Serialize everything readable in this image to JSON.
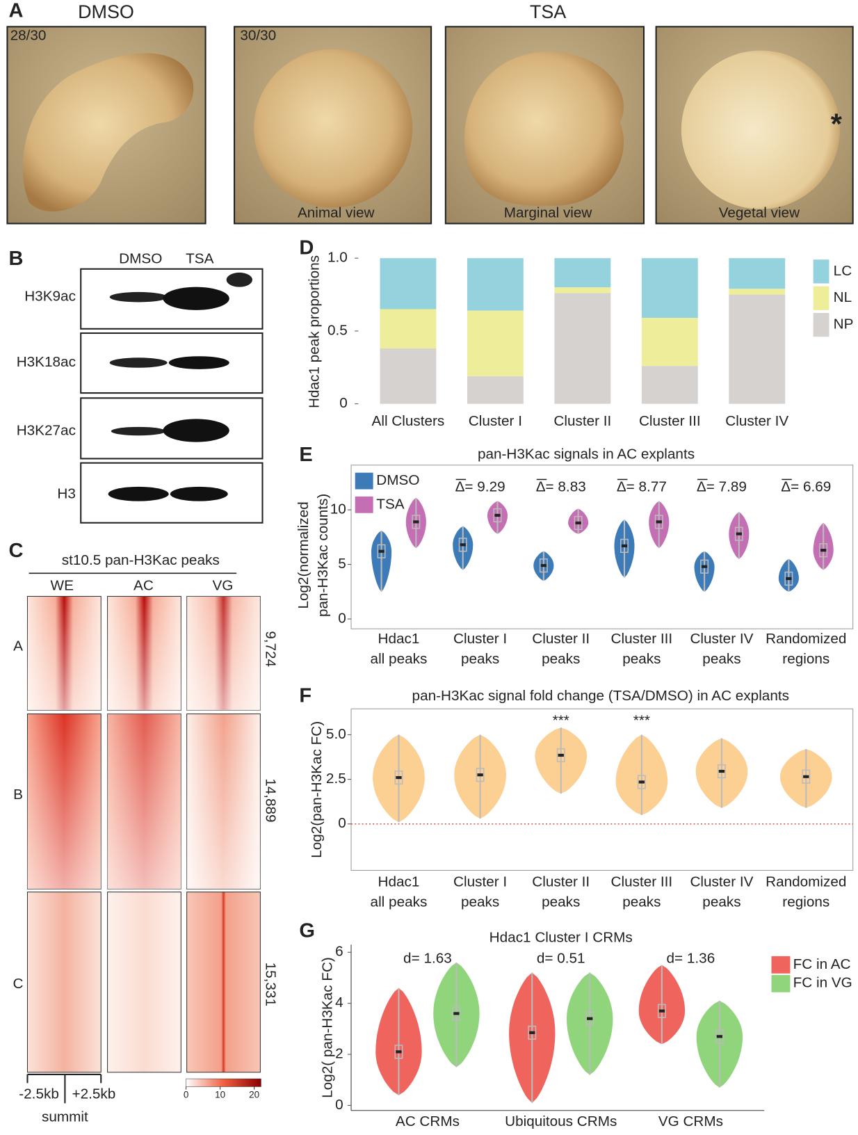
{
  "panel_a": {
    "letter": "A",
    "groups": [
      "DMSO",
      "TSA"
    ],
    "counts": [
      "28/30",
      "30/30"
    ],
    "views": [
      "Animal view",
      "Marginal view",
      "Vegetal view"
    ],
    "mark": "*"
  },
  "panel_b": {
    "letter": "B",
    "columns": [
      "DMSO",
      "TSA"
    ],
    "rows": [
      "H3K9ac",
      "H3K18ac",
      "H3K27ac",
      "H3"
    ]
  },
  "panel_c": {
    "letter": "C",
    "title": "st10.5 pan-H3Kac peaks",
    "columns": [
      "WE",
      "AC",
      "VG"
    ],
    "clusters": [
      "A",
      "B",
      "C"
    ],
    "counts": [
      "9,724",
      "14,889",
      "15,331"
    ],
    "x_labels": [
      "-2.5kb",
      "+2.5kb"
    ],
    "x_center": "summit",
    "colorbar": {
      "lim": [
        0,
        22
      ],
      "ticks": [
        0,
        10,
        20
      ]
    }
  },
  "chart_data": [
    {
      "type": "bar",
      "stacked": true,
      "panel": "D",
      "ylabel": "Hdac1 peak proportions",
      "categories": [
        "All Clusters",
        "Cluster I",
        "Cluster II",
        "Cluster III",
        "Cluster IV"
      ],
      "series": [
        {
          "name": "NP",
          "color": "#d5d2cf",
          "values": [
            0.38,
            0.19,
            0.76,
            0.26,
            0.75
          ]
        },
        {
          "name": "NL",
          "color": "#eeee9a",
          "values": [
            0.27,
            0.45,
            0.04,
            0.33,
            0.04
          ]
        },
        {
          "name": "LC",
          "color": "#94d3de",
          "values": [
            0.35,
            0.36,
            0.2,
            0.41,
            0.21
          ]
        }
      ],
      "ylim": [
        0,
        1
      ],
      "yticks": [
        0,
        0.5,
        {
          "value": 1,
          "label": "1.0"
        }
      ],
      "legend": "right"
    },
    {
      "type": "violin",
      "panel": "E",
      "title": "pan-H3Kac signals in AC explants",
      "ylabel": [
        "Log2(normalized",
        "pan-H3Kac counts)"
      ],
      "categories": [
        [
          "Hdac1",
          "all peaks"
        ],
        [
          "Cluster I",
          "peaks"
        ],
        [
          "Cluster II",
          "peaks"
        ],
        [
          "Cluster III",
          "peaks"
        ],
        [
          "Cluster IV",
          "peaks"
        ],
        [
          "Randomized",
          "regions"
        ]
      ],
      "annotations": [
        null,
        "Δ= 9.29",
        "Δ= 8.83",
        "Δ= 8.77",
        "Δ= 7.89",
        "Δ= 6.69"
      ],
      "series": [
        {
          "name": "DMSO",
          "color": "#3d7ab8",
          "values": [
            6.2,
            6.8,
            4.9,
            6.7,
            4.8,
            3.7
          ],
          "lower": [
            2.5,
            4.5,
            3.5,
            3.8,
            2.5,
            2.5
          ],
          "upper": [
            8.1,
            8.5,
            6.2,
            9.1,
            6.2,
            5.5
          ]
        },
        {
          "name": "TSA",
          "color": "#c46fb4",
          "values": [
            8.9,
            9.5,
            8.8,
            8.9,
            7.8,
            6.3
          ],
          "lower": [
            6.5,
            7.8,
            7.8,
            6.5,
            5.5,
            4.5
          ],
          "upper": [
            11.1,
            10.8,
            10.1,
            10.8,
            9.8,
            8.8
          ]
        }
      ],
      "ylim": [
        -0.9,
        14.1
      ],
      "yticks": [
        0,
        5,
        10
      ],
      "legend": "upper left"
    },
    {
      "type": "violin",
      "panel": "F",
      "title": "pan-H3Kac signal fold change (TSA/DMSO) in AC explants",
      "ylabel": "Log2(pan-H3Kac FC)",
      "categories": [
        [
          "Hdac1",
          "all peaks"
        ],
        [
          "Cluster I",
          "peaks"
        ],
        [
          "Cluster II",
          "peaks"
        ],
        [
          "Cluster III",
          "peaks"
        ],
        [
          "Cluster IV",
          "peaks"
        ],
        [
          "Randomized",
          "regions"
        ]
      ],
      "annotations": [
        null,
        null,
        "***",
        "***",
        null,
        null
      ],
      "color": "#fccf93",
      "values": [
        2.6,
        2.75,
        3.85,
        2.35,
        2.95,
        2.65
      ],
      "lower": [
        0.1,
        0.3,
        1.7,
        0.5,
        0.9,
        0.9
      ],
      "upper": [
        5.0,
        5.0,
        5.4,
        5.0,
        4.8,
        4.2
      ],
      "hline": 0,
      "ylim": [
        -2.6,
        6.45
      ],
      "yticks": [
        0,
        2.5,
        {
          "value": 5,
          "label": "5.0"
        }
      ]
    },
    {
      "type": "violin",
      "panel": "G",
      "title": "Hdac1 Cluster I CRMs",
      "ylabel": "Log2( pan-H3Kac FC)",
      "categories": [
        "AC CRMs",
        "Ubiquitous CRMs",
        "VG CRMs"
      ],
      "annotations": [
        "d= 1.63",
        "d= 0.51",
        "d= 1.36"
      ],
      "series": [
        {
          "name": "FC in AC",
          "color": "#f0645e",
          "values": [
            2.1,
            2.85,
            3.7
          ],
          "lower": [
            0.4,
            0.1,
            2.4
          ],
          "upper": [
            4.6,
            5.2,
            5.5
          ]
        },
        {
          "name": "FC in VG",
          "color": "#90d47c",
          "values": [
            3.6,
            3.4,
            2.7
          ],
          "lower": [
            1.5,
            1.2,
            0.7
          ],
          "upper": [
            5.6,
            5.2,
            4.1
          ]
        }
      ],
      "ylim": [
        -0.2,
        6.3
      ],
      "yticks": [
        0,
        2,
        4,
        6
      ],
      "legend": "right"
    }
  ]
}
